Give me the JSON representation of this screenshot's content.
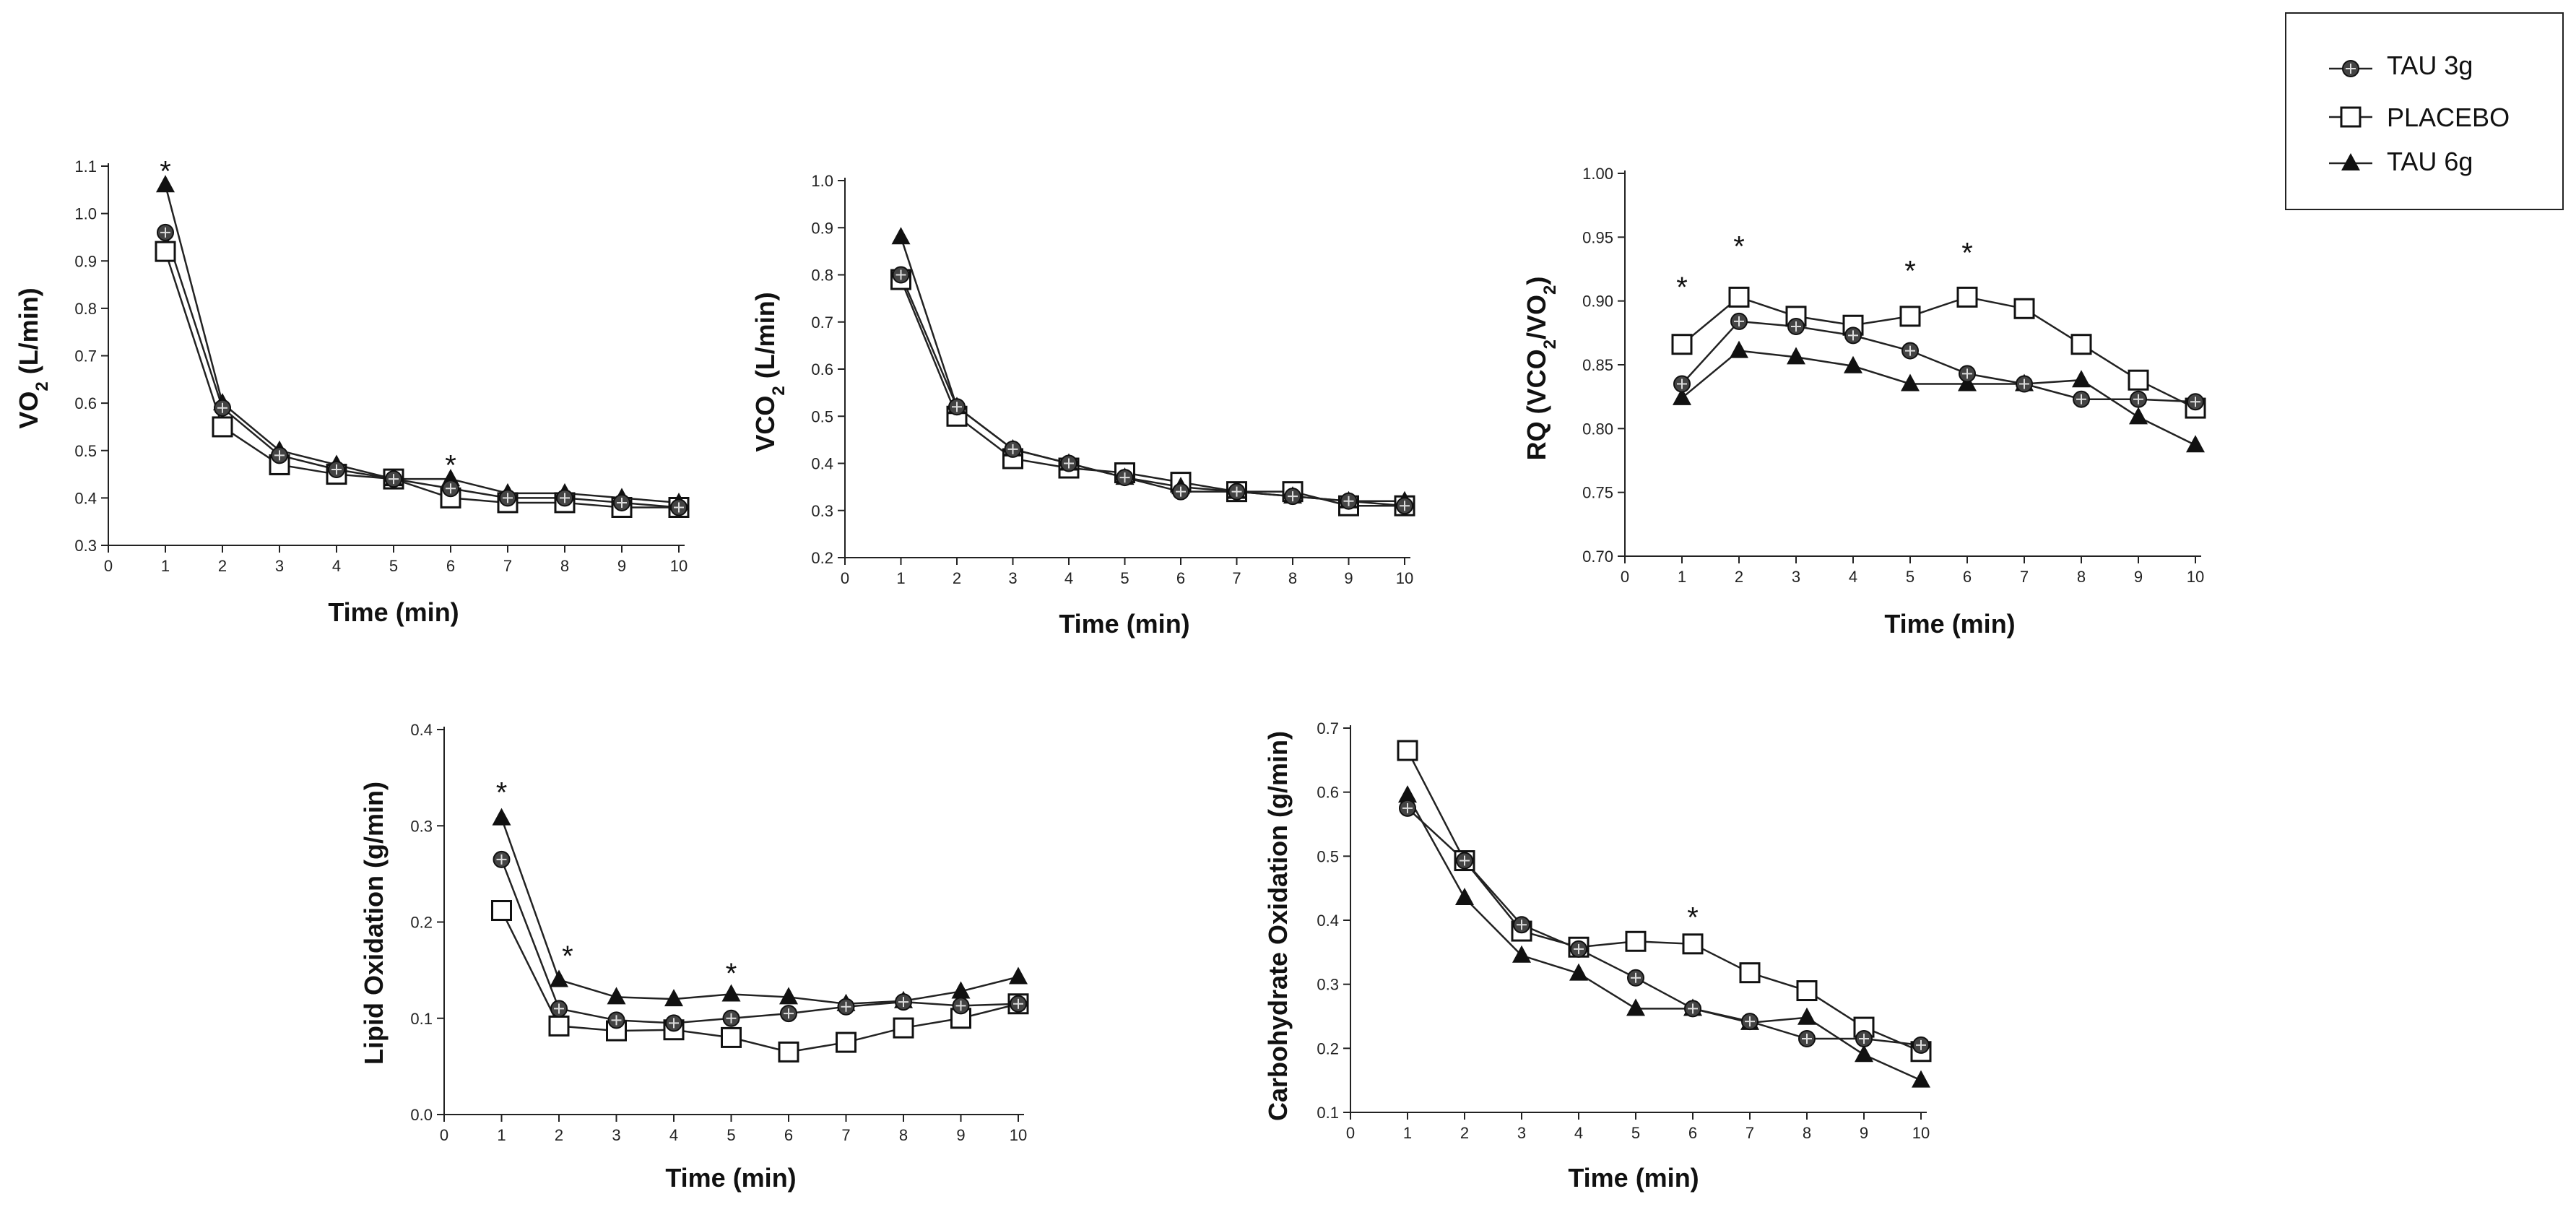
{
  "legend": {
    "entries": [
      {
        "key": "tau3",
        "label": "TAU 3g",
        "marker": "circle-dot"
      },
      {
        "key": "placebo",
        "label": "PLACEBO",
        "marker": "square-open"
      },
      {
        "key": "tau6",
        "label": "TAU 6g",
        "marker": "triangle-filled"
      }
    ]
  },
  "chart_data": [
    {
      "id": "vo2",
      "type": "line",
      "xlabel": "Time (min)",
      "ylabel_parts": [
        [
          "VO",
          ""
        ],
        [
          "2",
          "sub"
        ],
        [
          " (L/min)",
          ""
        ]
      ],
      "xlim": [
        0,
        10
      ],
      "ylim": [
        0.3,
        1.1
      ],
      "xticks": [
        "0",
        "1",
        "2",
        "3",
        "4",
        "5",
        "6",
        "7",
        "8",
        "9",
        "10"
      ],
      "yticks": [
        "0.3",
        "0.4",
        "0.5",
        "0.6",
        "0.7",
        "0.8",
        "0.9",
        "1.0",
        "1.1"
      ],
      "x": [
        1,
        2,
        3,
        4,
        5,
        6,
        7,
        8,
        9,
        10
      ],
      "series": [
        {
          "name": "TAU 3g",
          "key": "tau3",
          "values": [
            0.96,
            0.59,
            0.49,
            0.46,
            0.44,
            0.42,
            0.4,
            0.4,
            0.39,
            0.38
          ]
        },
        {
          "name": "PLACEBO",
          "key": "placebo",
          "values": [
            0.92,
            0.55,
            0.47,
            0.45,
            0.44,
            0.4,
            0.39,
            0.39,
            0.38,
            0.38
          ]
        },
        {
          "name": "TAU 6g",
          "key": "tau6",
          "values": [
            1.06,
            0.6,
            0.5,
            0.47,
            0.44,
            0.44,
            0.41,
            0.41,
            0.4,
            0.39
          ]
        }
      ],
      "annotations": [
        {
          "x": 1,
          "y": 1.09,
          "text": "*"
        },
        {
          "x": 6,
          "y": 0.47,
          "text": "*"
        }
      ]
    },
    {
      "id": "vco2",
      "type": "line",
      "xlabel": "Time (min)",
      "ylabel_parts": [
        [
          "VCO",
          ""
        ],
        [
          "2",
          "sub"
        ],
        [
          " (L/min)",
          ""
        ]
      ],
      "xlim": [
        0,
        10
      ],
      "ylim": [
        0.2,
        1.0
      ],
      "xticks": [
        "0",
        "1",
        "2",
        "3",
        "4",
        "5",
        "6",
        "7",
        "8",
        "9",
        "10"
      ],
      "yticks": [
        "0.2",
        "0.3",
        "0.4",
        "0.5",
        "0.6",
        "0.7",
        "0.8",
        "0.9",
        "1.0"
      ],
      "x": [
        1,
        2,
        3,
        4,
        5,
        6,
        7,
        8,
        9,
        10
      ],
      "series": [
        {
          "name": "TAU 3g",
          "key": "tau3",
          "values": [
            0.8,
            0.52,
            0.43,
            0.4,
            0.37,
            0.34,
            0.34,
            0.33,
            0.32,
            0.31
          ]
        },
        {
          "name": "PLACEBO",
          "key": "placebo",
          "values": [
            0.79,
            0.5,
            0.41,
            0.39,
            0.38,
            0.36,
            0.34,
            0.34,
            0.31,
            0.31
          ]
        },
        {
          "name": "TAU 6g",
          "key": "tau6",
          "values": [
            0.88,
            0.52,
            0.43,
            0.4,
            0.37,
            0.35,
            0.34,
            0.33,
            0.32,
            0.32
          ]
        }
      ],
      "annotations": []
    },
    {
      "id": "rq",
      "type": "line",
      "xlabel": "Time (min)",
      "ylabel_parts": [
        [
          "RQ (VCO",
          ""
        ],
        [
          "2",
          "sub"
        ],
        [
          "/VO",
          ""
        ],
        [
          "2",
          "sub"
        ],
        [
          ")",
          ""
        ]
      ],
      "xlim": [
        0,
        10
      ],
      "ylim": [
        0.7,
        1.0
      ],
      "xticks": [
        "0",
        "1",
        "2",
        "3",
        "4",
        "5",
        "6",
        "7",
        "8",
        "9",
        "10"
      ],
      "yticks": [
        "0.70",
        "0.75",
        "0.80",
        "0.85",
        "0.90",
        "0.95",
        "1.00"
      ],
      "x": [
        1,
        2,
        3,
        4,
        5,
        6,
        7,
        8,
        9,
        10
      ],
      "series": [
        {
          "name": "TAU 3g",
          "key": "tau3",
          "values": [
            0.835,
            0.884,
            0.88,
            0.873,
            0.861,
            0.843,
            0.835,
            0.823,
            0.823,
            0.821
          ]
        },
        {
          "name": "PLACEBO",
          "key": "placebo",
          "values": [
            0.866,
            0.903,
            0.888,
            0.881,
            0.888,
            0.903,
            0.894,
            0.866,
            0.838,
            0.816
          ]
        },
        {
          "name": "TAU 6g",
          "key": "tau6",
          "values": [
            0.824,
            0.861,
            0.856,
            0.849,
            0.835,
            0.835,
            0.835,
            0.838,
            0.809,
            0.787
          ]
        }
      ],
      "annotations": [
        {
          "x": 1,
          "y": 0.911,
          "text": "*"
        },
        {
          "x": 2,
          "y": 0.943,
          "text": "*"
        },
        {
          "x": 5,
          "y": 0.924,
          "text": "*"
        },
        {
          "x": 6,
          "y": 0.938,
          "text": "*"
        }
      ]
    },
    {
      "id": "lipid",
      "type": "line",
      "xlabel": "Time (min)",
      "ylabel_parts": [
        [
          "Lipid Oxidation (g/min)",
          ""
        ]
      ],
      "xlim": [
        0,
        10
      ],
      "ylim": [
        0.0,
        0.4
      ],
      "xticks": [
        "0",
        "1",
        "2",
        "3",
        "4",
        "5",
        "6",
        "7",
        "8",
        "9",
        "10"
      ],
      "yticks": [
        "0.0",
        "0.1",
        "0.2",
        "0.3",
        "0.4"
      ],
      "x": [
        1,
        2,
        3,
        4,
        5,
        6,
        7,
        8,
        9,
        10
      ],
      "series": [
        {
          "name": "TAU 3g",
          "key": "tau3",
          "values": [
            0.265,
            0.11,
            0.098,
            0.095,
            0.1,
            0.105,
            0.112,
            0.117,
            0.113,
            0.115
          ]
        },
        {
          "name": "PLACEBO",
          "key": "placebo",
          "values": [
            0.212,
            0.092,
            0.087,
            0.088,
            0.08,
            0.065,
            0.075,
            0.09,
            0.1,
            0.115
          ]
        },
        {
          "name": "TAU 6g",
          "key": "tau6",
          "values": [
            0.308,
            0.14,
            0.122,
            0.12,
            0.125,
            0.122,
            0.115,
            0.118,
            0.128,
            0.143
          ]
        }
      ],
      "annotations": [
        {
          "x": 1,
          "y": 0.335,
          "text": "*"
        },
        {
          "x": 2.15,
          "y": 0.165,
          "text": "*"
        },
        {
          "x": 5,
          "y": 0.147,
          "text": "*"
        }
      ]
    },
    {
      "id": "carb",
      "type": "line",
      "xlabel": "Time (min)",
      "ylabel_parts": [
        [
          "Carbohydrate Oxidation (g/min)",
          ""
        ]
      ],
      "xlim": [
        0,
        10
      ],
      "ylim": [
        0.1,
        0.7
      ],
      "xticks": [
        "0",
        "1",
        "2",
        "3",
        "4",
        "5",
        "6",
        "7",
        "8",
        "9",
        "10"
      ],
      "yticks": [
        "0.1",
        "0.2",
        "0.3",
        "0.4",
        "0.5",
        "0.6",
        "0.7"
      ],
      "x": [
        1,
        2,
        3,
        4,
        5,
        6,
        7,
        8,
        9,
        10
      ],
      "series": [
        {
          "name": "TAU 3g",
          "key": "tau3",
          "values": [
            0.575,
            0.493,
            0.393,
            0.355,
            0.31,
            0.262,
            0.242,
            0.215,
            0.215,
            0.205
          ]
        },
        {
          "name": "PLACEBO",
          "key": "placebo",
          "values": [
            0.665,
            0.493,
            0.383,
            0.358,
            0.367,
            0.363,
            0.318,
            0.29,
            0.233,
            0.195
          ]
        },
        {
          "name": "TAU 6g",
          "key": "tau6",
          "values": [
            0.595,
            0.435,
            0.345,
            0.317,
            0.262,
            0.262,
            0.24,
            0.248,
            0.19,
            0.15
          ]
        }
      ],
      "annotations": [
        {
          "x": 6,
          "y": 0.405,
          "text": "*"
        }
      ]
    }
  ]
}
